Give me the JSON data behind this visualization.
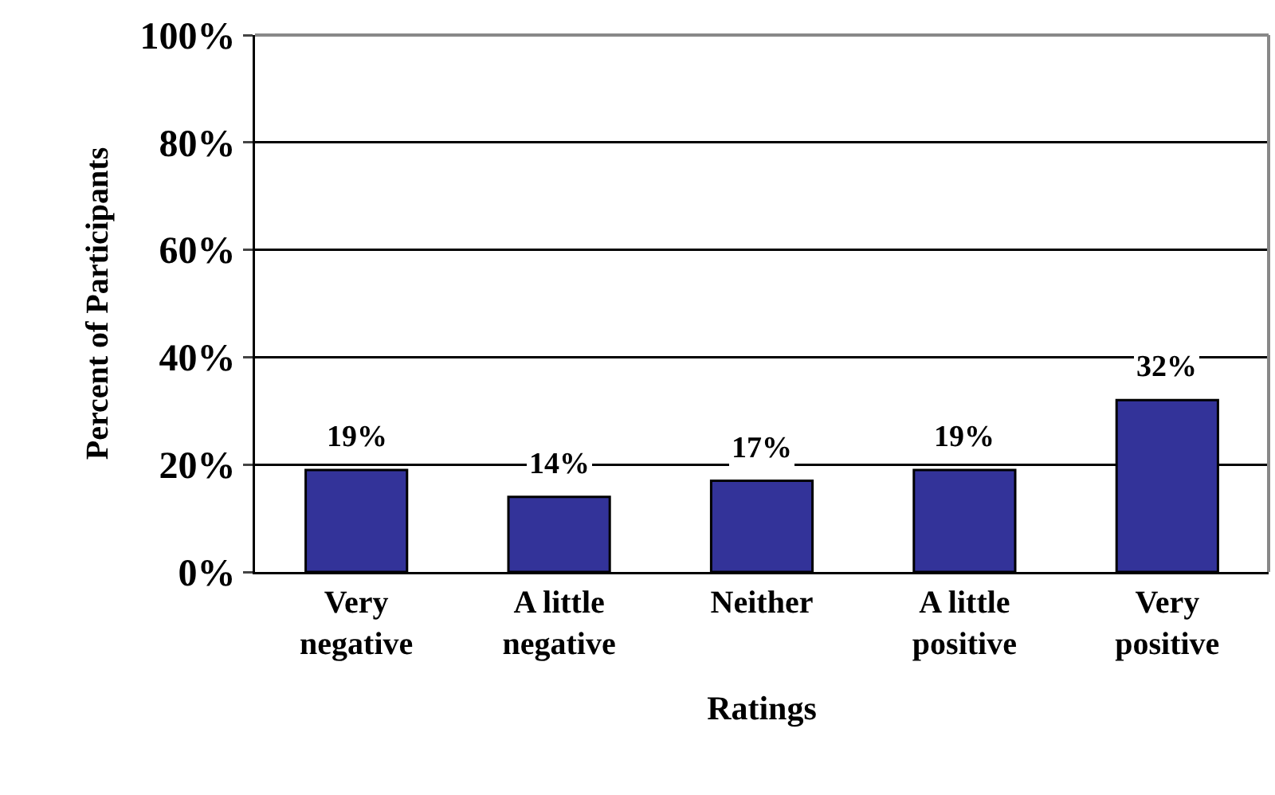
{
  "chart_data": {
    "type": "bar",
    "xlabel": "Ratings",
    "ylabel": "Percent of Participants",
    "categories": [
      "Very negative",
      "A little negative",
      "Neither",
      "A little positive",
      "Very positive"
    ],
    "values": [
      19,
      14,
      17,
      19,
      32
    ],
    "color": "#333399",
    "value_labels": [
      "19%",
      "14%",
      "17%",
      "19%",
      "32%"
    ],
    "ylim": [
      0,
      100
    ],
    "yticks": [
      {
        "value": 0,
        "label": "0%"
      },
      {
        "value": 20,
        "label": "20%"
      },
      {
        "value": 40,
        "label": "40%"
      },
      {
        "value": 60,
        "label": "60%"
      },
      {
        "value": 80,
        "label": "80%"
      },
      {
        "value": 100,
        "label": "100%"
      }
    ],
    "grid": "y",
    "legend": false
  }
}
